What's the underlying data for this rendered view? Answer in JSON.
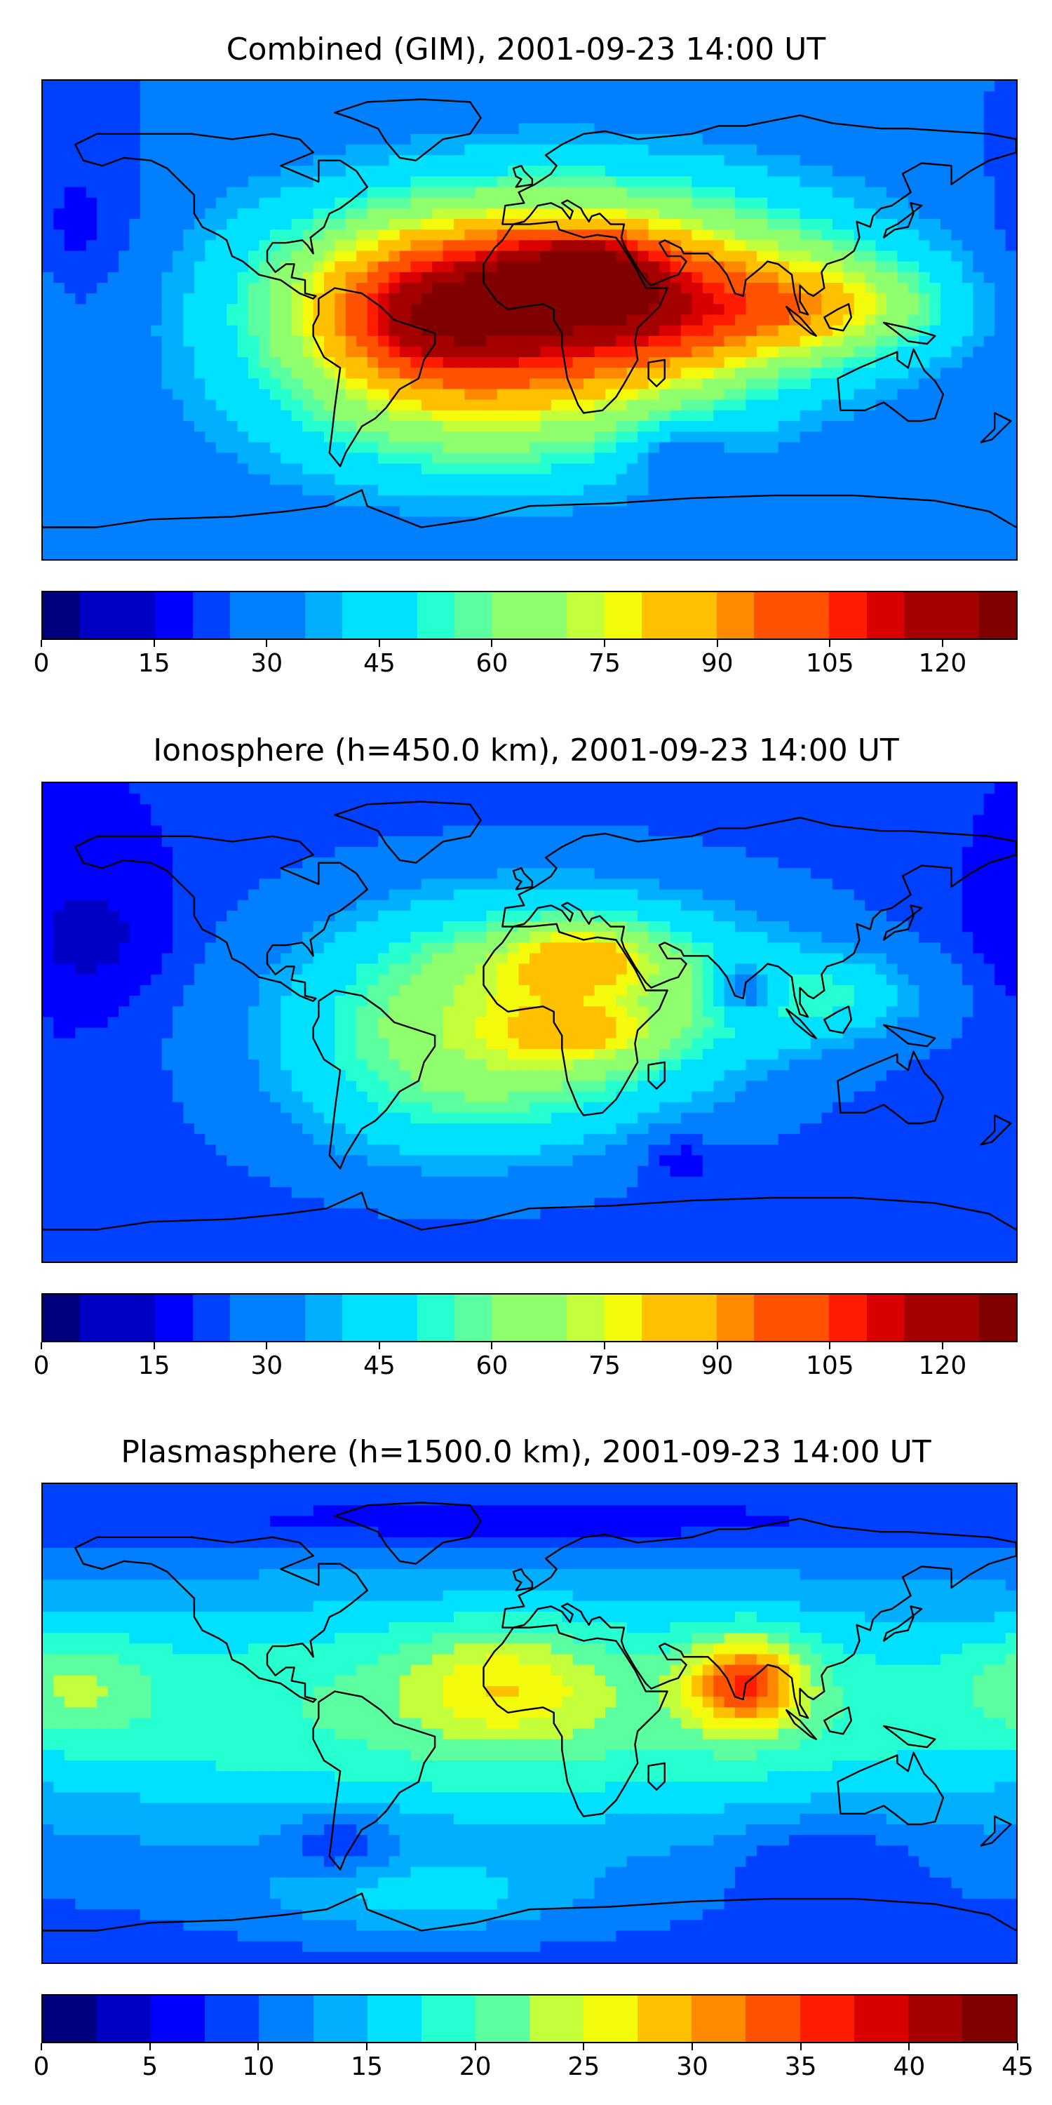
{
  "panels": [
    {
      "title": "Combined (GIM), 2001-09-23 14:00 UT",
      "colorbar": {
        "min": 0,
        "max": 130,
        "step": 5,
        "ticks": [
          0,
          15,
          30,
          45,
          60,
          75,
          90,
          105,
          120
        ],
        "tick_labels": [
          "0",
          "15",
          "30",
          "45",
          "60",
          "75",
          "90",
          "105",
          "120"
        ]
      },
      "field": {
        "background": 25,
        "blobs": [
          {
            "lon": 10,
            "lat": 12,
            "sx": 75,
            "sy": 30,
            "amp": 75
          },
          {
            "lon": 20,
            "lat": 20,
            "sx": 22,
            "sy": 10,
            "amp": 30
          },
          {
            "lon": -40,
            "lat": 2,
            "sx": 30,
            "sy": 18,
            "amp": 35
          },
          {
            "lon": 40,
            "lat": 0,
            "sx": 35,
            "sy": 15,
            "amp": 20
          },
          {
            "lon": 110,
            "lat": 5,
            "sx": 35,
            "sy": 14,
            "amp": 30
          },
          {
            "lon": -20,
            "lat": -35,
            "sx": 60,
            "sy": 25,
            "amp": 30
          },
          {
            "lon": 55,
            "lat": -50,
            "sx": 12,
            "sy": 8,
            "amp": -14
          },
          {
            "lon": -165,
            "lat": 30,
            "sx": 20,
            "sy": 25,
            "amp": -10
          }
        ]
      }
    },
    {
      "title": "Ionosphere  (h=450.0 km), 2001-09-23 14:00 UT",
      "colorbar": {
        "min": 0,
        "max": 130,
        "step": 5,
        "ticks": [
          0,
          15,
          30,
          45,
          60,
          75,
          90,
          105,
          120
        ],
        "tick_labels": [
          "0",
          "15",
          "30",
          "45",
          "60",
          "75",
          "90",
          "105",
          "120"
        ]
      },
      "field": {
        "background": 20,
        "blobs": [
          {
            "lon": 5,
            "lat": 10,
            "sx": 65,
            "sy": 30,
            "amp": 50
          },
          {
            "lon": 20,
            "lat": 25,
            "sx": 20,
            "sy": 9,
            "amp": 25
          },
          {
            "lon": 20,
            "lat": -5,
            "sx": 18,
            "sy": 7,
            "amp": 18
          },
          {
            "lon": -30,
            "lat": -30,
            "sx": 50,
            "sy": 25,
            "amp": 20
          },
          {
            "lon": 110,
            "lat": 10,
            "sx": 30,
            "sy": 12,
            "amp": 20
          },
          {
            "lon": 80,
            "lat": 12,
            "sx": 9,
            "sy": 7,
            "amp": -28
          },
          {
            "lon": -160,
            "lat": 30,
            "sx": 25,
            "sy": 20,
            "amp": -8
          },
          {
            "lon": 55,
            "lat": -50,
            "sx": 10,
            "sy": 7,
            "amp": -10
          }
        ]
      }
    },
    {
      "title": "Plasmasphere (h=1500.0 km), 2001-09-23 14:00 UT",
      "colorbar": {
        "min": 0,
        "max": 45,
        "step": 2.5,
        "ticks": [
          0,
          5,
          10,
          15,
          20,
          25,
          30,
          35,
          40,
          45
        ],
        "tick_labels": [
          "0",
          "5",
          "10",
          "15",
          "20",
          "25",
          "30",
          "35",
          "40",
          "45"
        ]
      },
      "field": {
        "background": 9,
        "blobs": [
          {
            "lon": 0,
            "lat": 5,
            "sx": 200,
            "sy": 35,
            "amp": 12
          },
          {
            "lon": 80,
            "lat": 15,
            "sx": 15,
            "sy": 12,
            "amp": 16
          },
          {
            "lon": -10,
            "lat": 15,
            "sx": 25,
            "sy": 15,
            "amp": 7
          },
          {
            "lon": -170,
            "lat": 15,
            "sx": 20,
            "sy": 15,
            "amp": 6
          },
          {
            "lon": -40,
            "lat": -65,
            "sx": 40,
            "sy": 10,
            "amp": 6
          },
          {
            "lon": -70,
            "lat": -45,
            "sx": 15,
            "sy": 10,
            "amp": -5
          },
          {
            "lon": 110,
            "lat": -50,
            "sx": 25,
            "sy": 12,
            "amp": -4
          },
          {
            "lon": 0,
            "lat": 75,
            "sx": 120,
            "sy": 8,
            "amp": -4
          }
        ]
      }
    }
  ],
  "colormap": [
    "#00007f",
    "#0000c4",
    "#0000ff",
    "#0040ff",
    "#0080ff",
    "#00b0ff",
    "#00e0ff",
    "#26ffd0",
    "#5bffa0",
    "#90ff6d",
    "#c3ff3a",
    "#f4fa0b",
    "#ffc000",
    "#ff8a00",
    "#ff5200",
    "#ff1c00",
    "#d80000",
    "#a40000",
    "#800000"
  ],
  "coastline_color": "#000000"
}
